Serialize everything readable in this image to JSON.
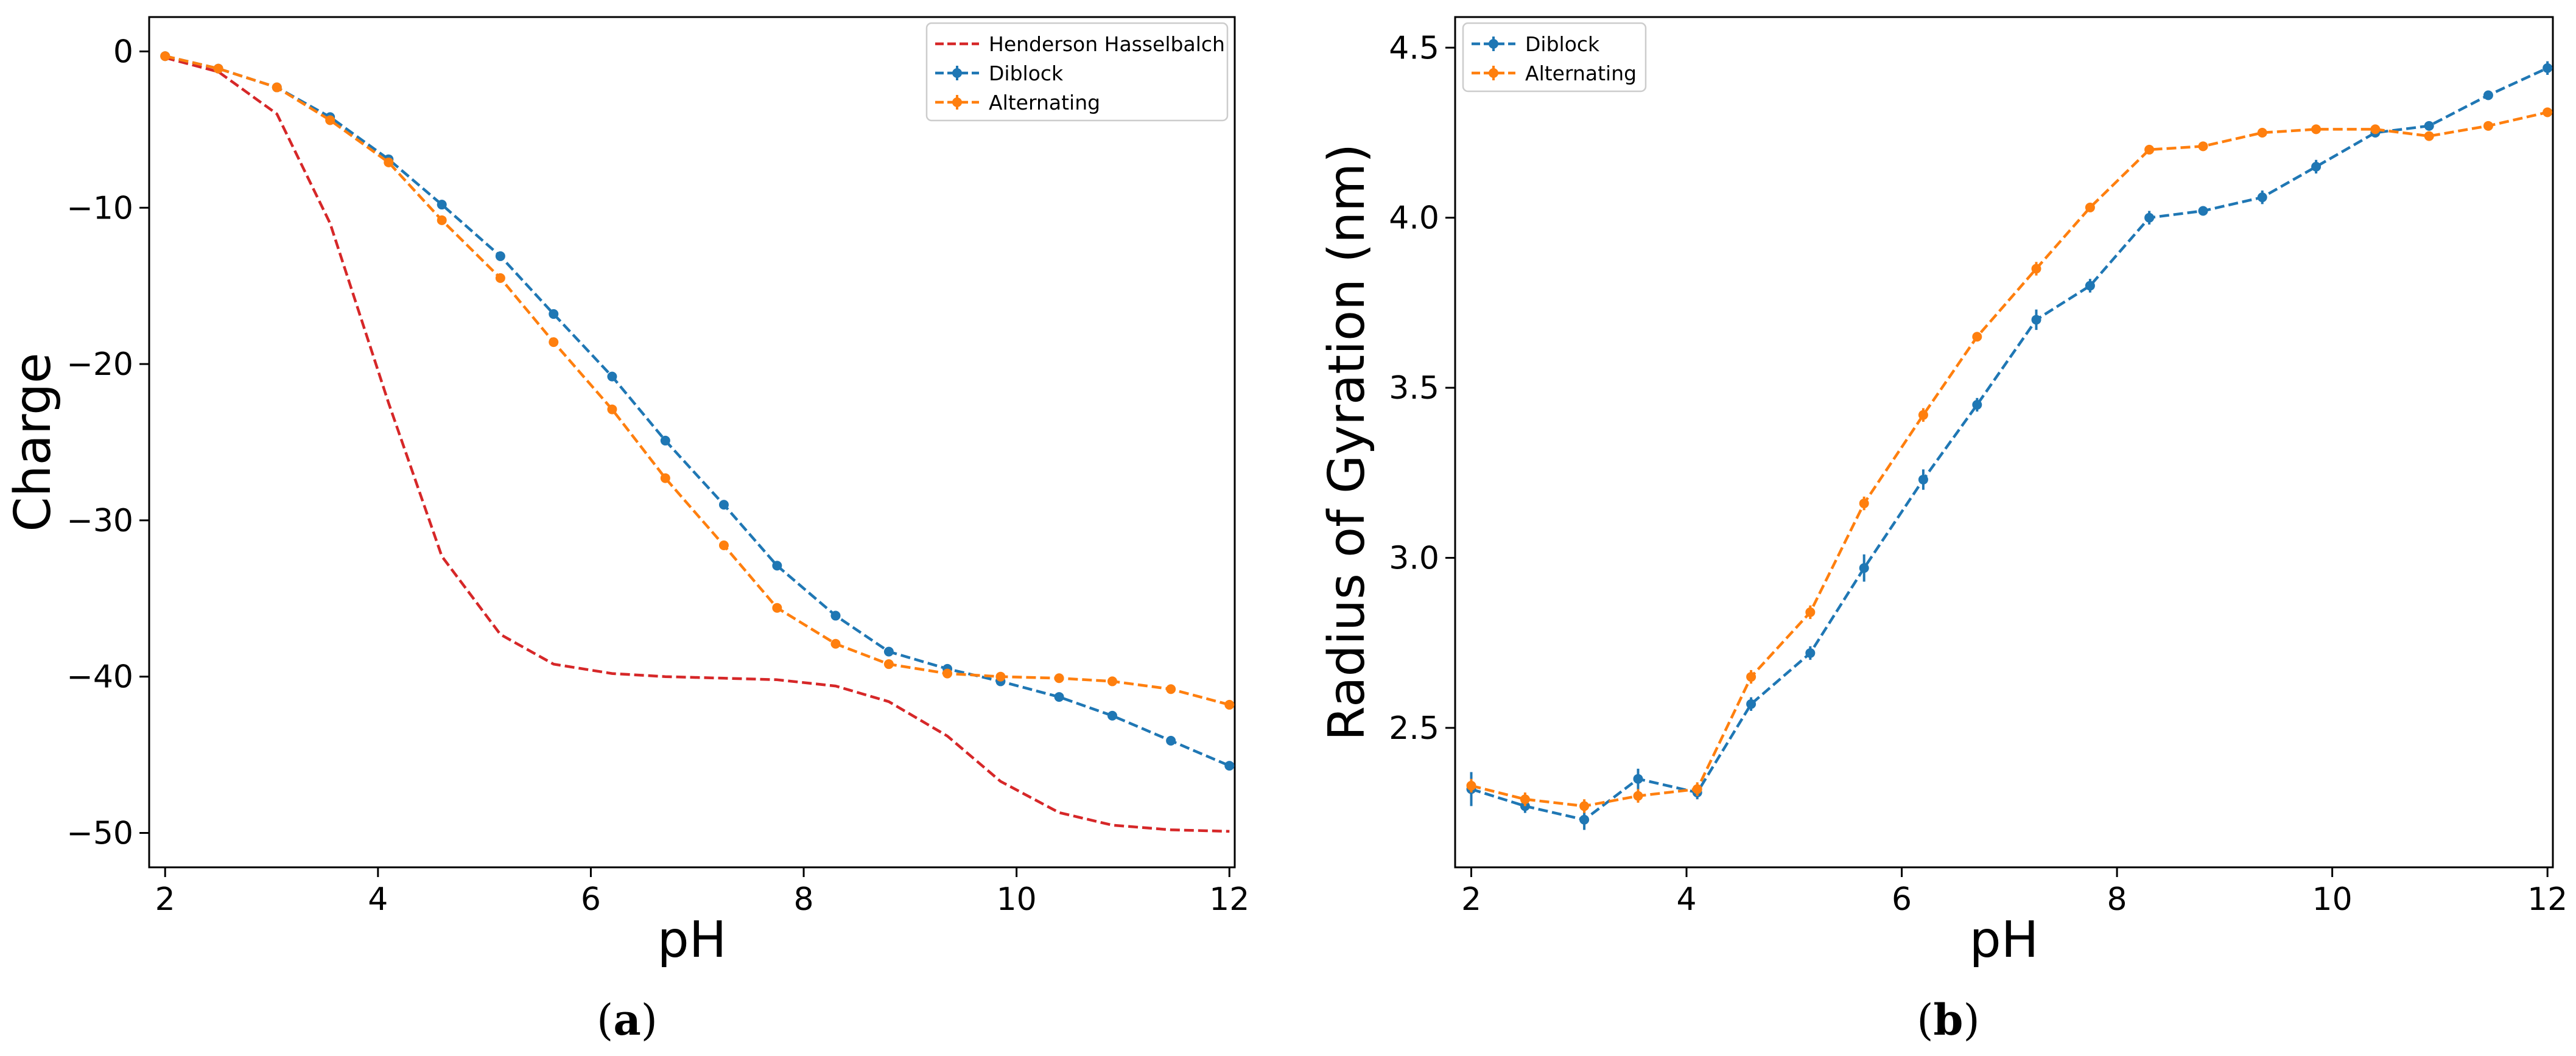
{
  "chart_data": [
    {
      "type": "line",
      "panel_label": "(a)",
      "panel_letter": "a",
      "title": "",
      "xlabel": "pH",
      "ylabel": "Charge",
      "xlim": [
        1.85,
        12.05
      ],
      "ylim": [
        -52.2,
        2.2
      ],
      "xticks": [
        2,
        4,
        6,
        8,
        10,
        12
      ],
      "xtick_labels": [
        "2",
        "4",
        "6",
        "8",
        "10",
        "12"
      ],
      "yticks": [
        0,
        -10,
        -20,
        -30,
        -40,
        -50
      ],
      "ytick_labels": [
        "0",
        "−10",
        "−20",
        "−30",
        "−40",
        "−50"
      ],
      "legend_position": "upper right",
      "grid": false,
      "series": [
        {
          "name": "Henderson Hasselbalch",
          "color": "#d62728",
          "style": "dashed",
          "markers": false,
          "x": [
            2.0,
            2.5,
            3.05,
            3.55,
            4.1,
            4.6,
            5.15,
            5.65,
            6.2,
            6.7,
            7.25,
            7.75,
            8.3,
            8.8,
            9.35,
            9.85,
            10.4,
            10.9,
            11.45,
            12.0
          ],
          "y": [
            -0.4,
            -1.3,
            -4.0,
            -11.0,
            -22.5,
            -32.3,
            -37.3,
            -39.2,
            -39.8,
            -40.0,
            -40.1,
            -40.2,
            -40.6,
            -41.6,
            -43.8,
            -46.7,
            -48.7,
            -49.5,
            -49.8,
            -49.9
          ]
        },
        {
          "name": "Diblock",
          "color": "#1f77b4",
          "style": "dashed",
          "markers": true,
          "x": [
            2.0,
            2.5,
            3.05,
            3.55,
            4.1,
            4.6,
            5.15,
            5.65,
            6.2,
            6.7,
            7.25,
            7.75,
            8.3,
            8.8,
            9.35,
            9.85,
            10.4,
            10.9,
            11.45,
            12.0
          ],
          "y": [
            -0.3,
            -1.1,
            -2.3,
            -4.2,
            -6.9,
            -9.8,
            -13.1,
            -16.8,
            -20.8,
            -24.9,
            -29.0,
            -32.9,
            -36.1,
            -38.4,
            -39.5,
            -40.3,
            -41.3,
            -42.5,
            -44.1,
            -45.7
          ]
        },
        {
          "name": "Alternating",
          "color": "#ff7f0e",
          "style": "dashed",
          "markers": true,
          "x": [
            2.0,
            2.5,
            3.05,
            3.55,
            4.1,
            4.6,
            5.15,
            5.65,
            6.2,
            6.7,
            7.25,
            7.75,
            8.3,
            8.8,
            9.35,
            9.85,
            10.4,
            10.9,
            11.45,
            12.0
          ],
          "y": [
            -0.3,
            -1.1,
            -2.3,
            -4.4,
            -7.1,
            -10.8,
            -14.5,
            -18.6,
            -22.9,
            -27.3,
            -31.6,
            -35.6,
            -37.9,
            -39.2,
            -39.8,
            -40.0,
            -40.1,
            -40.3,
            -40.8,
            -41.8
          ]
        }
      ]
    },
    {
      "type": "line",
      "panel_label": "(b)",
      "panel_letter": "b",
      "title": "",
      "xlabel": "pH",
      "ylabel": "Radius of Gyration (nm)",
      "xlim": [
        1.85,
        12.05
      ],
      "ylim": [
        2.09,
        4.59
      ],
      "xticks": [
        2,
        4,
        6,
        8,
        10,
        12
      ],
      "xtick_labels": [
        "2",
        "4",
        "6",
        "8",
        "10",
        "12"
      ],
      "yticks": [
        2.5,
        3.0,
        3.5,
        4.0,
        4.5
      ],
      "ytick_labels": [
        "2.5",
        "3.0",
        "3.5",
        "4.0",
        "4.5"
      ],
      "legend_position": "upper left",
      "grid": false,
      "series": [
        {
          "name": "Diblock",
          "color": "#1f77b4",
          "style": "dashed",
          "markers": true,
          "x": [
            2.0,
            2.5,
            3.05,
            3.55,
            4.1,
            4.6,
            5.15,
            5.65,
            6.2,
            6.7,
            7.25,
            7.75,
            8.3,
            8.8,
            9.35,
            9.85,
            10.4,
            10.9,
            11.45,
            12.0
          ],
          "y": [
            2.32,
            2.27,
            2.23,
            2.35,
            2.31,
            2.57,
            2.72,
            2.97,
            3.23,
            3.45,
            3.7,
            3.8,
            4.0,
            4.02,
            4.06,
            4.15,
            4.25,
            4.27,
            4.36,
            4.44
          ],
          "yerr": [
            0.05,
            0.02,
            0.03,
            0.03,
            0.02,
            0.02,
            0.02,
            0.04,
            0.03,
            0.02,
            0.03,
            0.02,
            0.02,
            0.01,
            0.02,
            0.02,
            0.01,
            0.01,
            0.01,
            0.02
          ]
        },
        {
          "name": "Alternating",
          "color": "#ff7f0e",
          "style": "dashed",
          "markers": true,
          "x": [
            2.0,
            2.5,
            3.05,
            3.55,
            4.1,
            4.6,
            5.15,
            5.65,
            6.2,
            6.7,
            7.25,
            7.75,
            8.3,
            8.8,
            9.35,
            9.85,
            10.4,
            10.9,
            11.45,
            12.0
          ],
          "y": [
            2.33,
            2.29,
            2.27,
            2.3,
            2.32,
            2.65,
            2.84,
            3.16,
            3.42,
            3.65,
            3.85,
            4.03,
            4.2,
            4.21,
            4.25,
            4.26,
            4.26,
            4.24,
            4.27,
            4.31
          ],
          "yerr": [
            0.02,
            0.02,
            0.02,
            0.02,
            0.02,
            0.02,
            0.02,
            0.02,
            0.02,
            0.01,
            0.02,
            0.01,
            0.01,
            0.01,
            0.01,
            0.01,
            0.01,
            0.01,
            0.01,
            0.01
          ]
        }
      ]
    }
  ]
}
